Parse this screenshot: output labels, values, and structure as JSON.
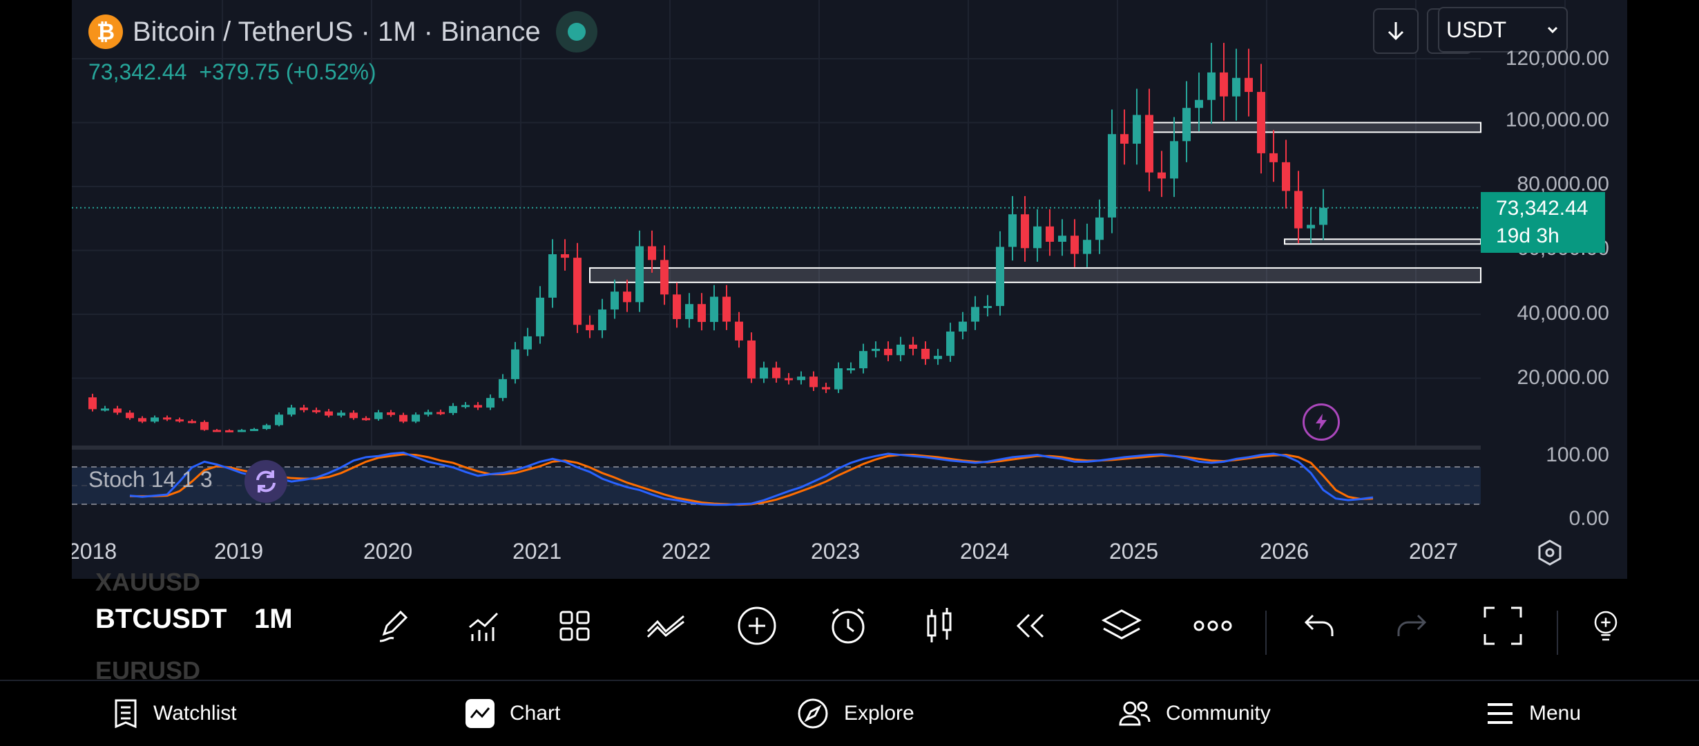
{
  "header": {
    "coin_symbol": "₿",
    "title": "Bitcoin / TetherUS · 1M · Binance",
    "last_price": "73,342.44",
    "change": "+379.75 (+0.52%)",
    "currency": "USDT"
  },
  "price_axis": {
    "labels": [
      "120,000.00",
      "100,000.00",
      "80,000.00",
      "73,342.44",
      "60,000.00",
      "40,000.00",
      "20,000.00"
    ]
  },
  "price_tag": {
    "price": "73,342.44",
    "countdown": "19d 3h"
  },
  "stoch": {
    "label": "Stoch 14 1 3",
    "axis_labels": [
      "100.00",
      "0.00"
    ]
  },
  "time_axis": {
    "years": [
      "2018",
      "2019",
      "2020",
      "2021",
      "2022",
      "2023",
      "2024",
      "2025",
      "2026",
      "2027"
    ]
  },
  "chart_data": {
    "type": "candlestick",
    "symbol": "BTCUSDT",
    "interval": "1M",
    "price_range": [
      0,
      125000
    ],
    "candles_close": [
      14000,
      10300,
      10500,
      9200,
      7500,
      6400,
      7700,
      7100,
      6600,
      6300,
      3800,
      3700,
      3400,
      3800,
      4100,
      5300,
      8600,
      10800,
      10000,
      9600,
      8300,
      9200,
      7500,
      7200,
      9300,
      8500,
      6400,
      8600,
      9400,
      9100,
      11300,
      11600,
      10800,
      13800,
      19700,
      29000,
      33100,
      45200,
      58800,
      57700,
      36700,
      35000,
      41500,
      47100,
      43800,
      61300,
      57000,
      46200,
      38500,
      43200,
      37600,
      45500,
      37700,
      31800,
      19900,
      23300,
      20000,
      19400,
      20500,
      17200,
      16500,
      23100,
      23100,
      28500,
      29200,
      27200,
      30500,
      29200,
      26000,
      27000,
      34600,
      37700,
      42300,
      42600,
      61100,
      71300,
      60700,
      67500,
      62700,
      64600,
      58900,
      63300,
      70300,
      96400,
      93400,
      102400,
      84400,
      82500,
      94200,
      104600,
      107100,
      115700,
      108200,
      114000,
      109600,
      90400,
      87600,
      78600,
      66900,
      68000,
      73342
    ],
    "green_color": "#26a69a",
    "red_color": "#f23645",
    "support_zones": [
      {
        "low": 97000,
        "high": 100000
      },
      {
        "low": 62000,
        "high": 63500
      },
      {
        "low": 50000,
        "high": 54500
      }
    ],
    "stoch_k": [
      20,
      18,
      20,
      22,
      45,
      70,
      80,
      75,
      68,
      60,
      55,
      58,
      50,
      45,
      48,
      52,
      60,
      70,
      82,
      88,
      90,
      94,
      96,
      88,
      80,
      75,
      70,
      62,
      55,
      58,
      60,
      65,
      72,
      80,
      85,
      80,
      70,
      62,
      50,
      42,
      35,
      30,
      22,
      15,
      12,
      8,
      5,
      4,
      4,
      5,
      6,
      12,
      20,
      28,
      35,
      45,
      55,
      68,
      78,
      85,
      90,
      94,
      92,
      90,
      88,
      85,
      82,
      80,
      78,
      80,
      84,
      88,
      90,
      92,
      88,
      85,
      80,
      80,
      82,
      85,
      88,
      90,
      92,
      93,
      90,
      86,
      80,
      78,
      80,
      85,
      88,
      92,
      94,
      90,
      80,
      60,
      30,
      15,
      12,
      14,
      17
    ],
    "stoch_d": [
      19,
      19,
      19,
      20,
      28,
      45,
      65,
      72,
      70,
      65,
      60,
      57,
      54,
      51,
      50,
      50,
      53,
      60,
      70,
      80,
      87,
      90,
      93,
      92,
      88,
      82,
      78,
      70,
      63,
      58,
      58,
      60,
      66,
      72,
      80,
      82,
      78,
      70,
      60,
      52,
      43,
      36,
      29,
      22,
      16,
      12,
      8,
      6,
      5,
      4,
      5,
      8,
      13,
      20,
      28,
      36,
      45,
      56,
      66,
      76,
      84,
      90,
      92,
      92,
      90,
      88,
      85,
      82,
      80,
      79,
      81,
      84,
      87,
      90,
      90,
      88,
      84,
      82,
      82,
      83,
      85,
      87,
      89,
      91,
      90,
      88,
      85,
      82,
      81,
      83,
      86,
      89,
      91,
      92,
      88,
      78,
      55,
      30,
      18,
      14,
      15
    ],
    "stoch_k_color": "#2962ff",
    "stoch_d_color": "#ff6d00"
  },
  "toolbar": {
    "symbols_ghost": [
      "XAUUSD",
      "EURUSD"
    ],
    "symbol": "BTCUSDT",
    "interval": "1M",
    "tools": [
      "draw-pen-icon",
      "indicators-icon",
      "layouts-grid-icon",
      "chart-type-icon",
      "add-icon",
      "alert-clock-icon",
      "candle-style-icon",
      "replay-icon",
      "layers-icon",
      "more-dots-icon",
      "undo-icon",
      "redo-icon",
      "fullscreen-icon",
      "ideas-bulb-icon"
    ]
  },
  "tabs": {
    "watchlist": "Watchlist",
    "chart": "Chart",
    "explore": "Explore",
    "community": "Community",
    "menu": "Menu"
  }
}
